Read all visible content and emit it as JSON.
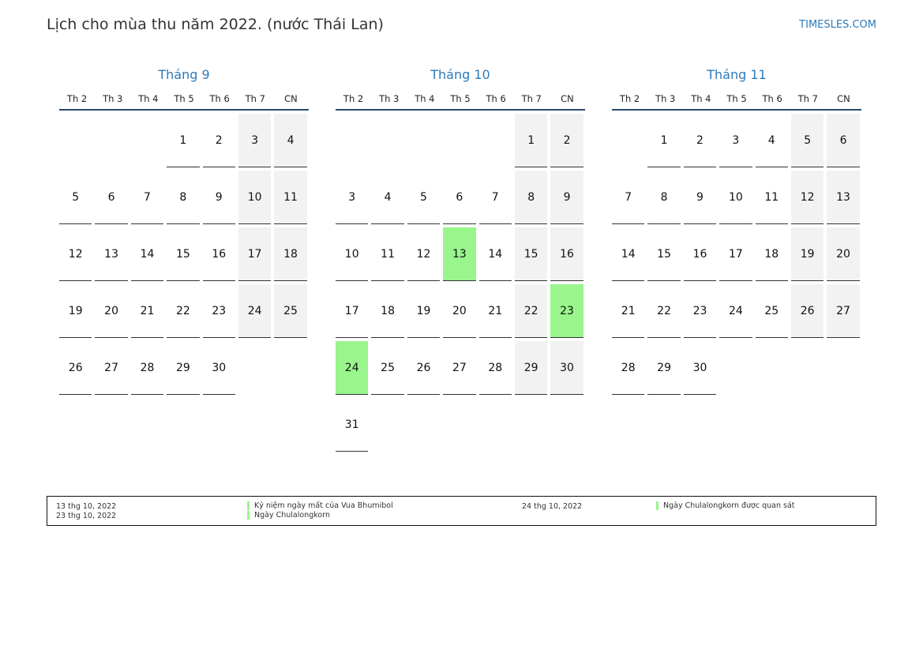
{
  "header": {
    "title": "Lịch cho mùa thu năm 2022. (nước Thái Lan)",
    "site": "TIMESLES.COM"
  },
  "weekdays": [
    "Th 2",
    "Th 3",
    "Th 4",
    "Th 5",
    "Th 6",
    "Th 7",
    "CN"
  ],
  "colors": {
    "accent": "#2e7ab8",
    "holiday": "#99f58c",
    "weekend": "#f2f2f2",
    "rule": "#2a4a6e"
  },
  "months": [
    {
      "name": "Tháng 9",
      "offset": 3,
      "days": 30,
      "holidays": []
    },
    {
      "name": "Tháng 10",
      "offset": 5,
      "days": 31,
      "holidays": [
        13,
        23,
        24
      ]
    },
    {
      "name": "Tháng 11",
      "offset": 1,
      "days": 30,
      "holidays": []
    }
  ],
  "legend": [
    {
      "date": "13 thg 10, 2022",
      "name": "Kỷ niệm ngày mất của Vua Bhumibol"
    },
    {
      "date": "23 thg 10, 2022",
      "name": "Ngày Chulalongkorn"
    },
    {
      "date": "24 thg 10, 2022",
      "name": "Ngày Chulalongkorn được quan sát"
    }
  ]
}
